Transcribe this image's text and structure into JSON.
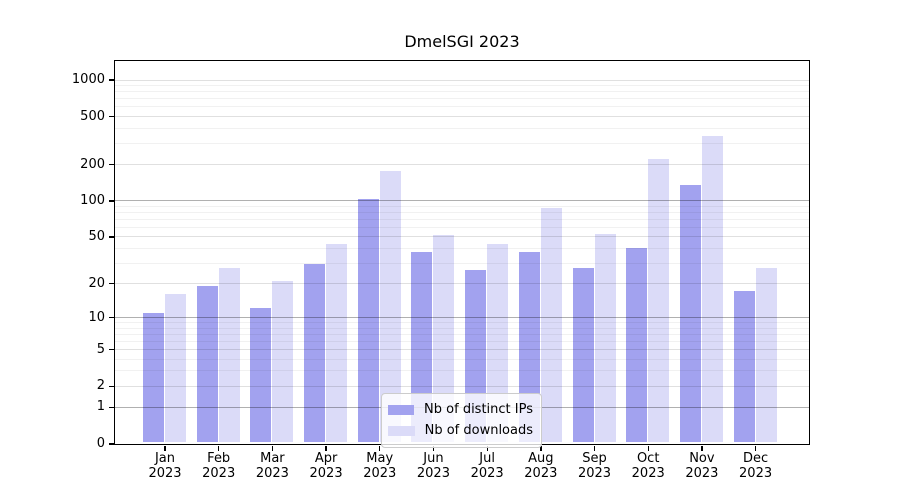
{
  "title": "DmelSGI 2023",
  "colors": {
    "series_ips": "#a2a2ef",
    "series_downloads": "#dbdbf8",
    "axis_frame": "#000000",
    "legend_border": "#cccccc"
  },
  "chart_data": {
    "type": "bar",
    "title": "DmelSGI 2023",
    "categories": [
      "Jan",
      "Feb",
      "Mar",
      "Apr",
      "May",
      "Jun",
      "Jul",
      "Aug",
      "Sep",
      "Oct",
      "Nov",
      "Dec"
    ],
    "year_label": "2023",
    "series": [
      {
        "name": "Nb of distinct IPs",
        "color": "#a2a2ef",
        "values": [
          11,
          19,
          12,
          29,
          102,
          37,
          26,
          37,
          27,
          40,
          133,
          17
        ]
      },
      {
        "name": "Nb of downloads",
        "color": "#dbdbf8",
        "values": [
          16,
          27,
          21,
          43,
          175,
          51,
          43,
          87,
          52,
          220,
          340,
          27
        ]
      }
    ],
    "yscale": "log1p",
    "ylim": [
      0,
      1450
    ],
    "y_major_ticks": [
      0,
      1,
      2,
      5,
      10,
      20,
      50,
      100,
      200,
      500,
      1000
    ],
    "y_dark_grid_ticks": [
      1,
      10,
      100
    ],
    "y_minor_ticks": [
      3,
      4,
      6,
      7,
      8,
      9,
      30,
      40,
      60,
      70,
      80,
      90,
      300,
      400,
      600,
      700,
      800,
      900
    ],
    "grid": true,
    "legend_position": "lower center"
  },
  "legend": {
    "items": [
      {
        "label": "Nb of distinct IPs"
      },
      {
        "label": "Nb of downloads"
      }
    ]
  }
}
